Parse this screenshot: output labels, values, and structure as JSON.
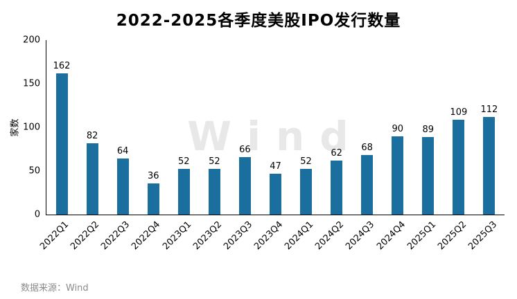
{
  "title": "2022-2025各季度美股IPO发行数量",
  "source": "数据来源：Wind",
  "watermark": "Wind",
  "chart_data": {
    "type": "bar",
    "title": "2022-2025各季度美股IPO发行数量",
    "categories": [
      "2022Q1",
      "2022Q2",
      "2022Q3",
      "2022Q4",
      "2023Q1",
      "2023Q2",
      "2023Q3",
      "2023Q4",
      "2024Q1",
      "2024Q2",
      "2024Q3",
      "2024Q4",
      "2025Q1",
      "2025Q2",
      "2025Q3"
    ],
    "values": [
      162,
      82,
      64,
      36,
      52,
      52,
      66,
      47,
      52,
      62,
      68,
      90,
      89,
      109,
      112
    ],
    "xlabel": "",
    "ylabel": "家数",
    "ylim": [
      0,
      200
    ],
    "yticks": [
      0,
      50,
      100,
      150,
      200
    ],
    "bar_color": "#1b6f9e",
    "grid": false,
    "legend": "none",
    "source_note": "数据来源：Wind"
  }
}
